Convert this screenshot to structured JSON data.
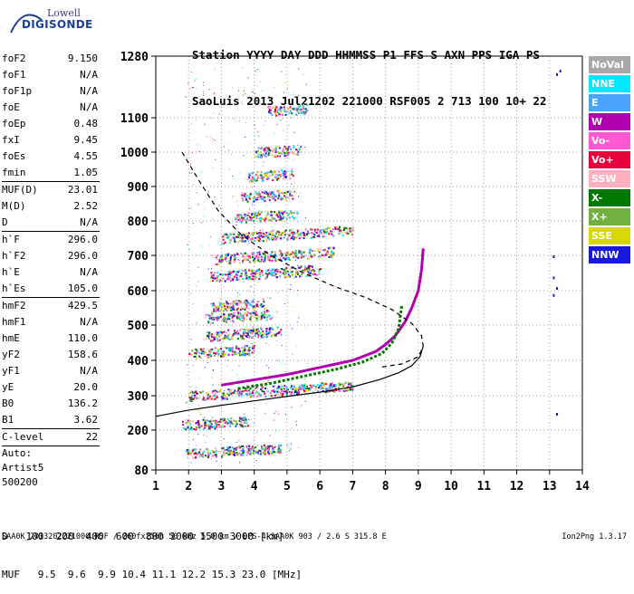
{
  "logo": {
    "line1": "Lowell",
    "line2": "DIGISONDE"
  },
  "header": {
    "labels": [
      "Station",
      "YYYY",
      "DAY",
      "DDD",
      "HHMMSS",
      "P1",
      "FFS",
      "S",
      "AXN",
      "PPS",
      "IGA",
      "PS"
    ],
    "values": [
      "SaoLuis",
      "2013",
      "Jul21",
      "202",
      "221000",
      "RSF",
      "005",
      "2",
      "713",
      "100",
      "10+",
      "22"
    ]
  },
  "parameters": [
    {
      "group": [
        {
          "k": "foF2",
          "v": "9.150"
        },
        {
          "k": "foF1",
          "v": "N/A"
        },
        {
          "k": "foF1p",
          "v": "N/A"
        },
        {
          "k": "foE",
          "v": "N/A"
        },
        {
          "k": "foEp",
          "v": "0.48"
        },
        {
          "k": "fxI",
          "v": "9.45"
        },
        {
          "k": "foEs",
          "v": "4.55"
        },
        {
          "k": "fmin",
          "v": "1.05"
        }
      ]
    },
    {
      "group": [
        {
          "k": "MUF(D)",
          "v": "23.01"
        },
        {
          "k": "M(D)",
          "v": "2.52"
        },
        {
          "k": "D",
          "v": "N/A"
        }
      ]
    },
    {
      "group": [
        {
          "k": "h`F",
          "v": "296.0"
        },
        {
          "k": "h`F2",
          "v": "296.0"
        },
        {
          "k": "h`E",
          "v": "N/A"
        },
        {
          "k": "h`Es",
          "v": "105.0"
        }
      ]
    },
    {
      "group": [
        {
          "k": "hmF2",
          "v": "429.5"
        },
        {
          "k": "hmF1",
          "v": "N/A"
        },
        {
          "k": "hmE",
          "v": "110.0"
        },
        {
          "k": "yF2",
          "v": "158.6"
        },
        {
          "k": "yF1",
          "v": "N/A"
        },
        {
          "k": "yE",
          "v": "20.0"
        },
        {
          "k": "B0",
          "v": "136.2"
        },
        {
          "k": "B1",
          "v": "3.62"
        }
      ]
    },
    {
      "group": [
        {
          "k": "C-level",
          "v": "22"
        }
      ]
    }
  ],
  "auto": [
    "Auto:",
    "Artist5",
    "500200"
  ],
  "legend": [
    {
      "label": "NoVal",
      "color": "#a8a8a8"
    },
    {
      "label": "NNE",
      "color": "#00e8ff"
    },
    {
      "label": "E",
      "color": "#4aa3ff"
    },
    {
      "label": "W",
      "color": "#b000b0"
    },
    {
      "label": "Vo-",
      "color": "#ff58d0"
    },
    {
      "label": "Vo+",
      "color": "#e8003c"
    },
    {
      "label": "SSW",
      "color": "#ffb0c0"
    },
    {
      "label": "X-",
      "color": "#007800"
    },
    {
      "label": "X+",
      "color": "#70b040"
    },
    {
      "label": "SSE",
      "color": "#d8d800"
    },
    {
      "label": "NNW",
      "color": "#1818e0"
    }
  ],
  "bottom": {
    "d_label": "D",
    "d_values": "100  200  400  600  800 1000 1500 3000 [km]",
    "muf_label": "MUF",
    "muf_values": "9.5  9.6  9.9 10.4 11.1 12.2 15.3 23.0 [MHz]"
  },
  "footer_left": "SAA0K_2013202221000.RSF / 260fx256h 50 kHz 5.0 km / DPS-4 SAA0K 903 / 2.6 S 315.8 E",
  "footer_right": "Ion2Png 1.3.17",
  "chart_data": {
    "type": "scatter",
    "xlim": [
      1,
      14
    ],
    "ylim": [
      80,
      1300
    ],
    "x_ticks": [
      1,
      2,
      3,
      4,
      5,
      6,
      7,
      8,
      9,
      10,
      11,
      12,
      13,
      14
    ],
    "y_ticks": [
      80,
      200,
      300,
      400,
      500,
      600,
      700,
      800,
      900,
      1000,
      1100,
      1280
    ],
    "grid": "dotted",
    "series": [
      {
        "kind": "o-trace",
        "color": "#b000b0",
        "x": [
          3.0,
          4.0,
          5.0,
          6.0,
          7.0,
          7.7,
          8.0,
          8.3,
          8.6,
          8.8,
          9.0,
          9.1,
          9.15
        ],
        "y": [
          330,
          345,
          360,
          380,
          400,
          425,
          445,
          470,
          510,
          550,
          600,
          660,
          720
        ]
      },
      {
        "kind": "x-trace",
        "color": "#007800",
        "x": [
          3.5,
          4.5,
          5.5,
          6.5,
          7.3,
          7.9,
          8.2,
          8.4,
          8.5
        ],
        "y": [
          320,
          335,
          355,
          375,
          395,
          420,
          450,
          490,
          560
        ]
      },
      {
        "kind": "profile-solid",
        "color": "#000",
        "x": [
          1.0,
          2.0,
          3.0,
          4.0,
          5.0,
          6.0,
          7.0,
          7.8,
          8.4,
          8.8,
          9.05,
          9.15
        ],
        "y": [
          240,
          258,
          272,
          285,
          298,
          310,
          325,
          345,
          365,
          385,
          410,
          440
        ]
      },
      {
        "kind": "profile-dashed",
        "color": "#000",
        "x": [
          1.8,
          2.3,
          2.9,
          3.6,
          4.5,
          5.5,
          6.5,
          7.4,
          8.2,
          8.8,
          9.1,
          9.15,
          9.0,
          8.5,
          7.8
        ],
        "y": [
          1000,
          920,
          830,
          760,
          700,
          650,
          610,
          580,
          545,
          505,
          470,
          440,
          410,
          390,
          380
        ]
      },
      {
        "kind": "echo-bands",
        "color": "mixed",
        "bands": [
          {
            "y": 215,
            "x0": 1.8,
            "x1": 3.8
          },
          {
            "y": 300,
            "x0": 2.0,
            "x1": 7.0
          },
          {
            "y": 420,
            "x0": 2.0,
            "x1": 4.0
          },
          {
            "y": 470,
            "x0": 2.5,
            "x1": 4.8
          },
          {
            "y": 520,
            "x0": 2.5,
            "x1": 4.5
          },
          {
            "y": 555,
            "x0": 2.7,
            "x1": 4.3
          },
          {
            "y": 640,
            "x0": 2.6,
            "x1": 6.0
          },
          {
            "y": 690,
            "x0": 2.8,
            "x1": 6.4
          },
          {
            "y": 750,
            "x0": 3.0,
            "x1": 7.0
          },
          {
            "y": 810,
            "x0": 3.4,
            "x1": 5.3
          },
          {
            "y": 870,
            "x0": 3.6,
            "x1": 5.2
          },
          {
            "y": 930,
            "x0": 3.8,
            "x1": 5.2
          },
          {
            "y": 1000,
            "x0": 4.0,
            "x1": 5.4
          },
          {
            "y": 1120,
            "x0": 4.4,
            "x1": 5.6
          },
          {
            "y": 130,
            "x0": 1.9,
            "x1": 4.8
          }
        ]
      }
    ]
  }
}
